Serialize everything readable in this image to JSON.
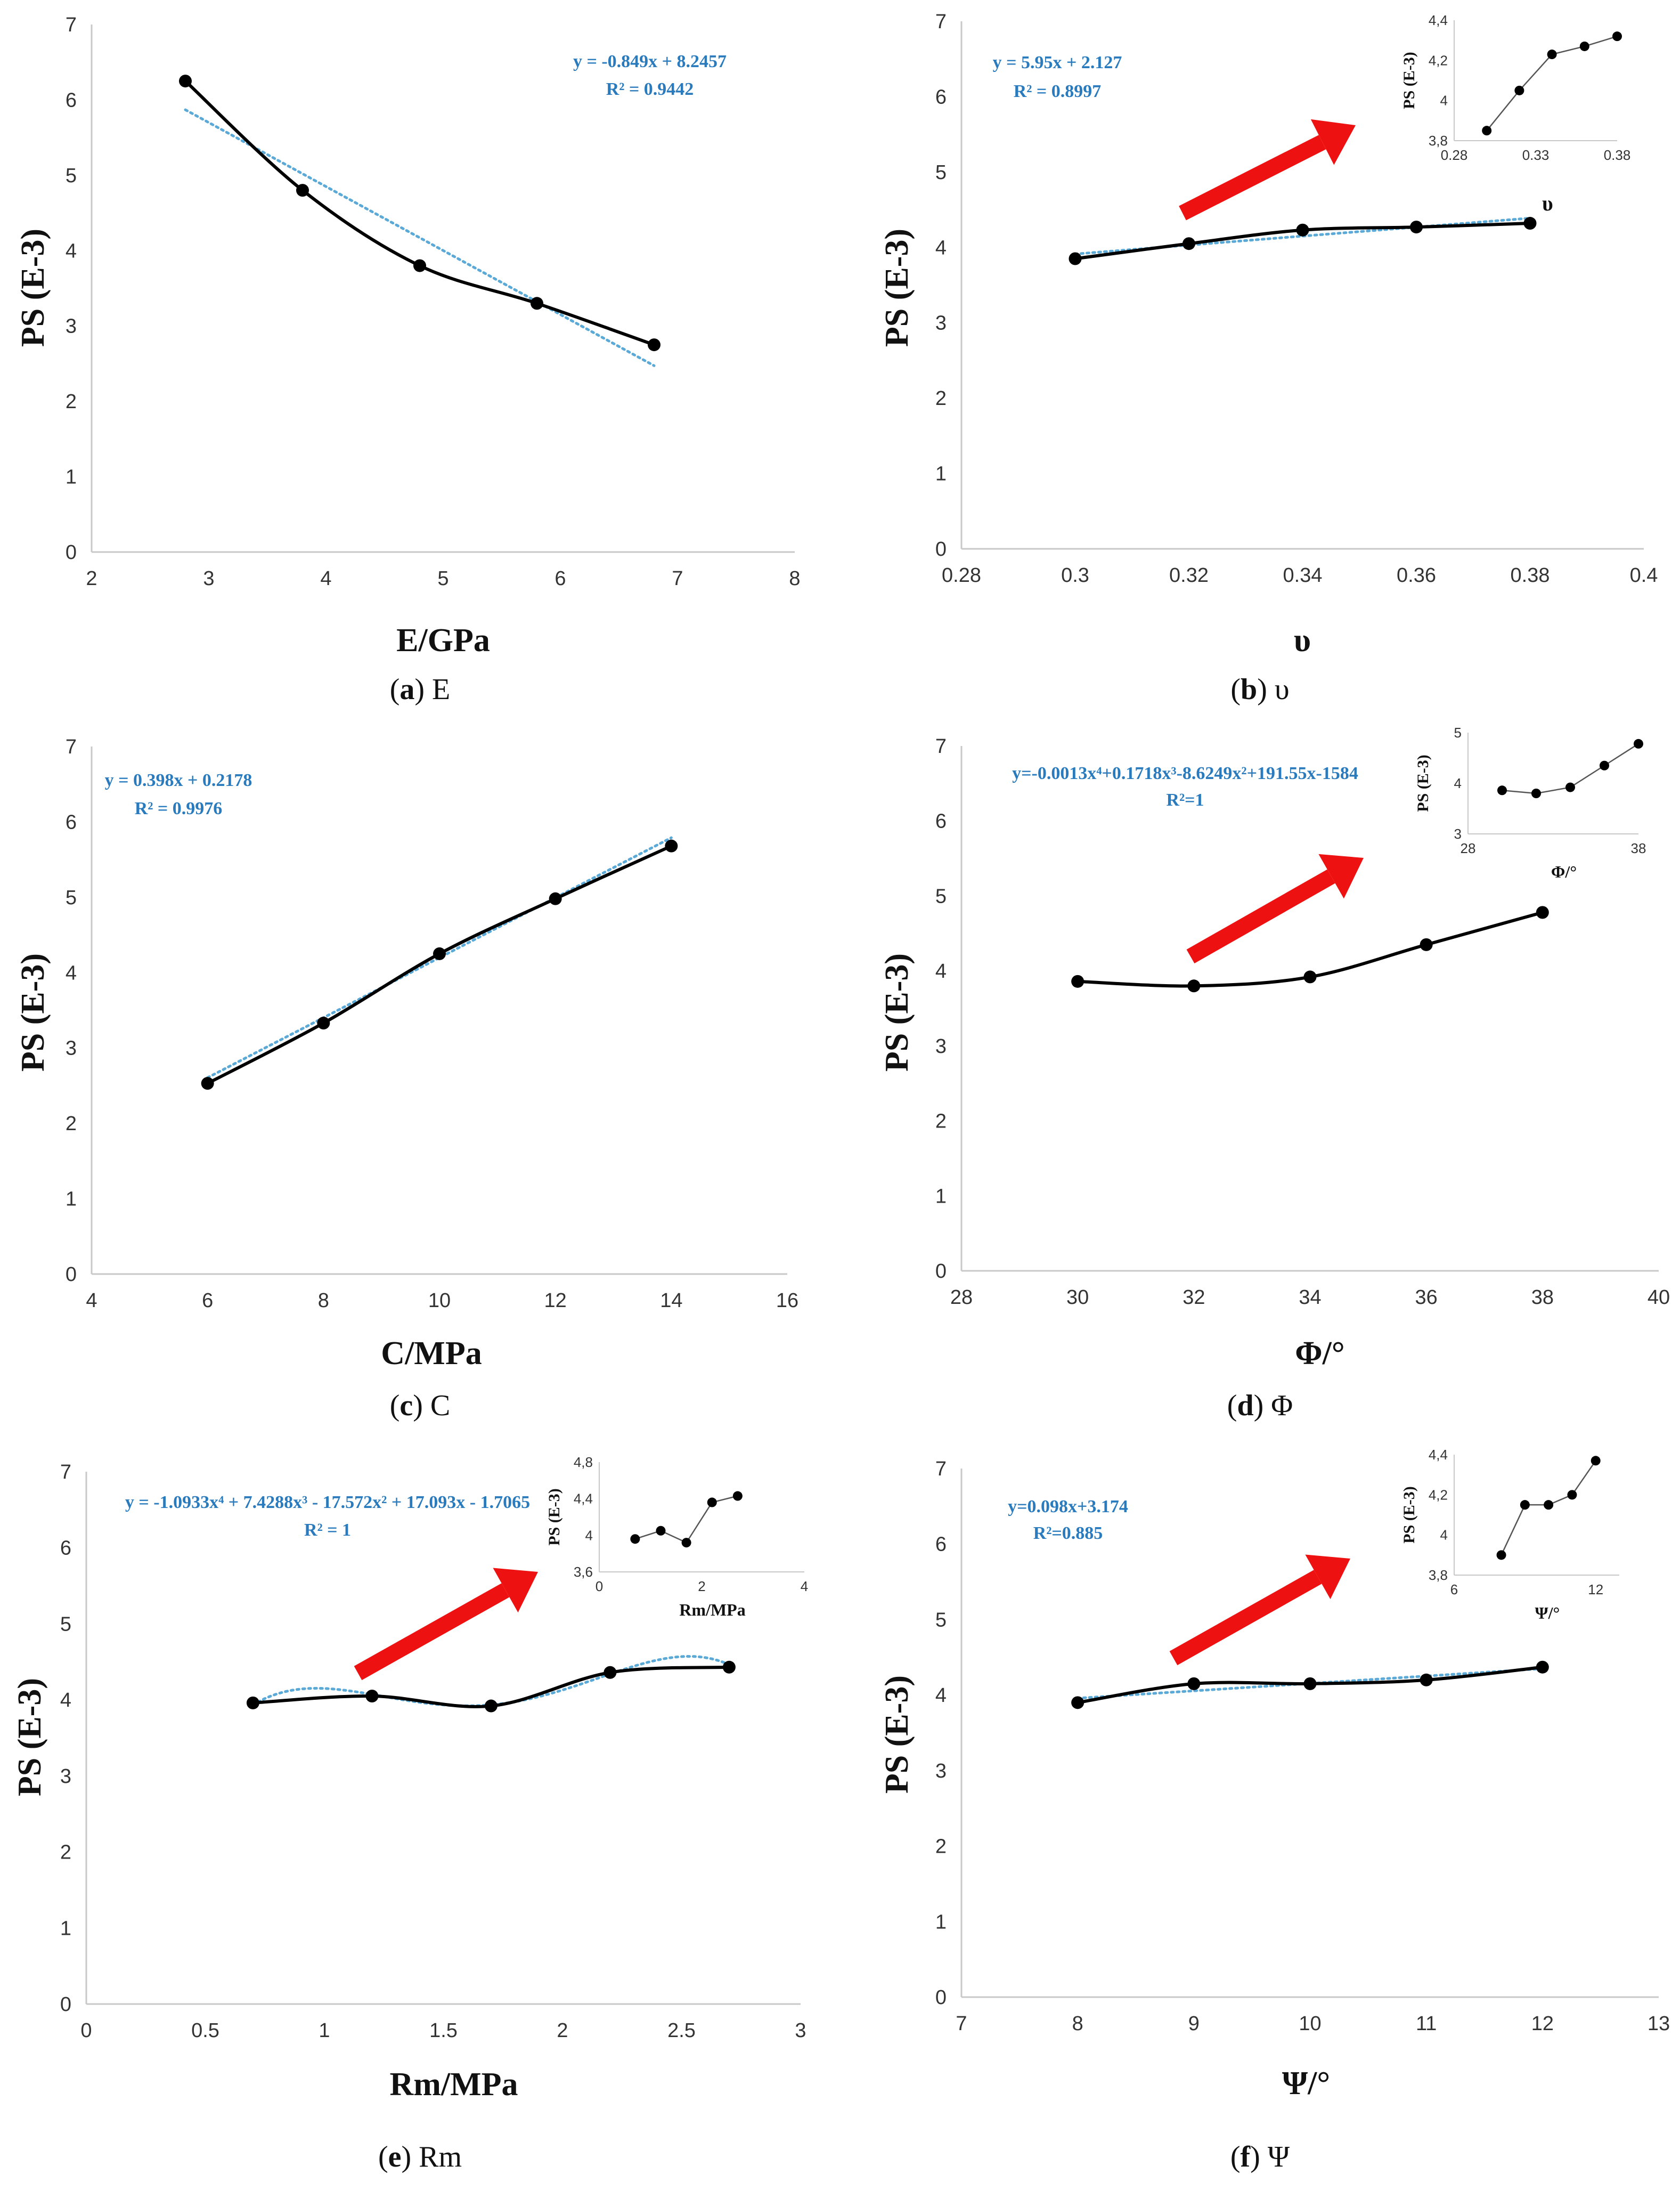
{
  "colors": {
    "line": "#000000",
    "trend": "#5aa9d6",
    "equation": "#2a7bbd",
    "arrow": "#ee1111",
    "axis": "#c8c8c8",
    "tick": "#333333"
  },
  "panels": [
    {
      "key": "a",
      "caption": {
        "letter": "a",
        "symbol": "E"
      },
      "chart_data": {
        "type": "line",
        "title": "",
        "xlabel": "E/GPa",
        "ylabel": "PS (E-3)",
        "xlim": [
          2,
          8
        ],
        "ylim": [
          0,
          7
        ],
        "xticks": [
          2,
          3,
          4,
          5,
          6,
          7,
          8
        ],
        "yticks": [
          0,
          1,
          2,
          3,
          4,
          5,
          6,
          7
        ],
        "x": [
          2.8,
          3.8,
          4.8,
          5.8,
          6.8
        ],
        "series": [
          {
            "name": "PS",
            "values": [
              6.25,
              4.8,
              3.8,
              3.3,
              2.75
            ]
          }
        ],
        "trendline": {
          "type": "linear",
          "coefficients": [
            -0.849,
            8.2457
          ],
          "x_range": [
            2.8,
            6.8
          ]
        },
        "equation": [
          "y = -0.849x + 8.2457",
          "R² = 0.9442"
        ],
        "inset": null,
        "extra_label": ""
      }
    },
    {
      "key": "b",
      "caption": {
        "letter": "b",
        "symbol": "υ"
      },
      "chart_data": {
        "type": "line",
        "title": "",
        "xlabel": "υ",
        "ylabel": "PS (E-3)",
        "xlim": [
          0.28,
          0.4
        ],
        "ylim": [
          0,
          7
        ],
        "xticks": [
          0.28,
          0.3,
          0.32,
          0.34,
          0.36,
          0.38,
          0.4
        ],
        "yticks": [
          0,
          1,
          2,
          3,
          4,
          5,
          6,
          7
        ],
        "x": [
          0.3,
          0.32,
          0.34,
          0.36,
          0.38
        ],
        "series": [
          {
            "name": "PS",
            "values": [
              3.85,
              4.05,
              4.23,
              4.27,
              4.32
            ]
          }
        ],
        "trendline": {
          "type": "linear",
          "coefficients": [
            5.95,
            2.127
          ],
          "x_range": [
            0.3,
            0.38
          ]
        },
        "equation": [
          "y = 5.95x + 2.127",
          "R² = 0.8997"
        ],
        "extra_label": "υ",
        "inset": {
          "ylabel": "PS (E-3)",
          "xlabel": "",
          "xlim": [
            0.28,
            0.38
          ],
          "ylim": [
            3.8,
            4.4
          ],
          "xticks": [
            "0.28",
            "0.33",
            "0.38"
          ],
          "xtick_values": [
            0.28,
            0.33,
            0.38
          ],
          "yticks": [
            "3,8",
            "4",
            "4,2",
            "4,4"
          ],
          "ytick_values": [
            3.8,
            4.0,
            4.2,
            4.4
          ],
          "x": [
            0.3,
            0.32,
            0.34,
            0.36,
            0.38
          ],
          "values": [
            3.85,
            4.05,
            4.23,
            4.27,
            4.32
          ]
        }
      }
    },
    {
      "key": "c",
      "caption": {
        "letter": "c",
        "symbol": "C"
      },
      "chart_data": {
        "type": "line",
        "title": "",
        "xlabel": "C/MPa",
        "ylabel": "PS (E-3)",
        "xlim": [
          4,
          16
        ],
        "ylim": [
          0,
          7
        ],
        "xticks": [
          4,
          6,
          8,
          10,
          12,
          14,
          16
        ],
        "yticks": [
          0,
          1,
          2,
          3,
          4,
          5,
          6,
          7
        ],
        "x": [
          6,
          8,
          10,
          12,
          14
        ],
        "series": [
          {
            "name": "PS",
            "values": [
              2.53,
              3.33,
              4.25,
              4.98,
              5.68
            ]
          }
        ],
        "trendline": {
          "type": "linear",
          "coefficients": [
            0.398,
            0.2178
          ],
          "x_range": [
            6,
            14
          ]
        },
        "equation": [
          "y = 0.398x + 0.2178",
          "R² = 0.9976"
        ],
        "inset": null,
        "extra_label": ""
      }
    },
    {
      "key": "d",
      "caption": {
        "letter": "d",
        "symbol": "Φ"
      },
      "chart_data": {
        "type": "line",
        "title": "",
        "xlabel": "Φ/°",
        "ylabel": "PS (E-3)",
        "xlim": [
          28,
          40
        ],
        "ylim": [
          0,
          7
        ],
        "xticks": [
          28,
          30,
          32,
          34,
          36,
          38,
          40
        ],
        "yticks": [
          0,
          1,
          2,
          3,
          4,
          5,
          6,
          7
        ],
        "x": [
          30,
          32,
          34,
          36,
          38
        ],
        "series": [
          {
            "name": "PS",
            "values": [
              3.86,
              3.8,
              3.92,
              4.35,
              4.78
            ]
          }
        ],
        "trendline": {
          "type": "smooth",
          "x_range": [
            30,
            38
          ]
        },
        "equation": [
          "y=-0.0013x⁴+0.1718x³-8.6249x²+191.55x-1584",
          "R²=1"
        ],
        "extra_label": "",
        "inset": {
          "ylabel": "PS (E-3)",
          "xlabel": "Φ/°",
          "xlim": [
            28,
            38
          ],
          "ylim": [
            3,
            5
          ],
          "xticks": [
            "28",
            "38"
          ],
          "xtick_values": [
            28,
            38
          ],
          "yticks": [
            "3",
            "4",
            "5"
          ],
          "ytick_values": [
            3,
            4,
            5
          ],
          "x": [
            30,
            32,
            34,
            36,
            38
          ],
          "values": [
            3.86,
            3.8,
            3.92,
            4.35,
            4.78
          ]
        }
      }
    },
    {
      "key": "e",
      "caption": {
        "letter": "e",
        "symbol": "Rm"
      },
      "chart_data": {
        "type": "line",
        "title": "",
        "xlabel": "Rm/MPa",
        "ylabel": "PS (E-3)",
        "xlim": [
          0,
          3
        ],
        "ylim": [
          0,
          7
        ],
        "xticks": [
          0,
          0.5,
          1,
          1.5,
          2,
          2.5,
          3
        ],
        "yticks": [
          0,
          1,
          2,
          3,
          4,
          5,
          6,
          7
        ],
        "x": [
          0.7,
          1.2,
          1.7,
          2.2,
          2.7
        ],
        "series": [
          {
            "name": "PS",
            "values": [
              3.96,
              4.05,
              3.92,
              4.36,
              4.43
            ]
          }
        ],
        "trendline": {
          "type": "poly",
          "coefficients": [
            -1.0933,
            7.4288,
            -17.572,
            17.093,
            -1.7065
          ],
          "x_range": [
            0.7,
            2.7
          ]
        },
        "equation": [
          "y = -1.0933x⁴ + 7.4288x³ - 17.572x² + 17.093x - 1.7065",
          "R² = 1"
        ],
        "extra_label": "",
        "inset": {
          "ylabel": "PS (E-3)",
          "xlabel": "Rm/MPa",
          "xlim": [
            0,
            4
          ],
          "ylim": [
            3.6,
            4.8
          ],
          "xticks": [
            "0",
            "2",
            "4"
          ],
          "xtick_values": [
            0,
            2,
            4
          ],
          "yticks": [
            "3,6",
            "4",
            "4,4",
            "4,8"
          ],
          "ytick_values": [
            3.6,
            4.0,
            4.4,
            4.8
          ],
          "x": [
            0.7,
            1.2,
            1.7,
            2.2,
            2.7
          ],
          "values": [
            3.96,
            4.05,
            3.92,
            4.36,
            4.43
          ]
        }
      }
    },
    {
      "key": "f",
      "caption": {
        "letter": "f",
        "symbol": "Ψ"
      },
      "chart_data": {
        "type": "line",
        "title": "",
        "xlabel": "Ψ/°",
        "ylabel": "PS (E-3)",
        "xlim": [
          7,
          13
        ],
        "ylim": [
          0,
          7
        ],
        "xticks": [
          7,
          8,
          9,
          10,
          11,
          12,
          13
        ],
        "yticks": [
          0,
          1,
          2,
          3,
          4,
          5,
          6,
          7
        ],
        "x": [
          8,
          9,
          10,
          11,
          12
        ],
        "series": [
          {
            "name": "PS",
            "values": [
              3.9,
              4.15,
              4.15,
              4.2,
              4.37
            ]
          }
        ],
        "trendline": {
          "type": "linear",
          "coefficients": [
            0.098,
            3.174
          ],
          "x_range": [
            8,
            12
          ]
        },
        "equation": [
          "y=0.098x+3.174",
          "R²=0.885"
        ],
        "extra_label": "",
        "inset": {
          "ylabel": "PS (E-3)",
          "xlabel": "Ψ/°",
          "xlim": [
            6,
            13
          ],
          "ylim": [
            3.8,
            4.4
          ],
          "xticks": [
            "6",
            "12"
          ],
          "xtick_values": [
            6,
            12
          ],
          "yticks": [
            "3,8",
            "4",
            "4,2",
            "4,4"
          ],
          "ytick_values": [
            3.8,
            4.0,
            4.2,
            4.4
          ],
          "x": [
            8,
            9,
            10,
            11,
            12
          ],
          "values": [
            3.9,
            4.15,
            4.15,
            4.2,
            4.37
          ]
        }
      }
    }
  ]
}
